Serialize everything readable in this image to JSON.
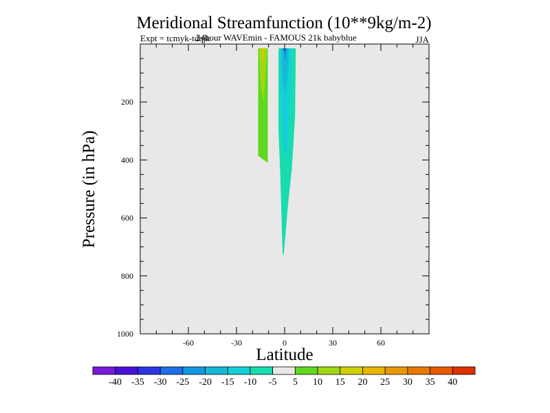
{
  "colors": {
    "plot_background": "#e8e8e8",
    "frame": "#000000",
    "colorbar": [
      "#7a18dc",
      "#4a10d8",
      "#2c36e0",
      "#1d6ee6",
      "#1098e0",
      "#16b8d8",
      "#12d0d8",
      "#18dcb0",
      "#e8e8e8",
      "#60d820",
      "#a0d810",
      "#d0d000",
      "#e8b800",
      "#e89800",
      "#e87800",
      "#e85a00",
      "#e03000"
    ]
  },
  "chart_data": {
    "type": "contour",
    "title": "Meridional Streamfunction (10**9kg/m-2)",
    "subtitle_left": "Expt = tcmyk-tdqjk",
    "subtitle_overlap": "24hour WAVEmin - FAMOUS 21k babyblue",
    "season": "JJA",
    "xlabel": "Latitude",
    "ylabel": "Pressure (in hPa)",
    "xlim": [
      -90,
      90
    ],
    "ylim": [
      1000,
      0
    ],
    "xticks": [
      -60,
      -30,
      0,
      30,
      60
    ],
    "yticks": [
      200,
      400,
      600,
      800,
      1000
    ],
    "x_minor_step": 10,
    "y_minor_step": 50,
    "colorbar_levels": [
      -40,
      -35,
      -30,
      -25,
      -20,
      -15,
      -10,
      -5,
      5,
      10,
      15,
      20,
      25,
      30,
      35,
      40
    ],
    "regions": [
      {
        "name": "positive-5-10",
        "level_index": 9,
        "points": [
          [
            -16.5,
            15
          ],
          [
            -10.5,
            15
          ],
          [
            -10.5,
            410
          ],
          [
            -13,
            400
          ],
          [
            -16.5,
            385
          ]
        ]
      },
      {
        "name": "positive-10-15",
        "level_index": 10,
        "points": [
          [
            -16,
            15
          ],
          [
            -11,
            15
          ],
          [
            -13,
            200
          ],
          [
            -15,
            140
          ]
        ]
      },
      {
        "name": "positive-15-20",
        "level_index": 11,
        "points": [
          [
            -14.8,
            15
          ],
          [
            -12.6,
            15
          ],
          [
            -13.6,
            60
          ]
        ]
      },
      {
        "name": "negative-10-5",
        "level_index": 7,
        "points": [
          [
            -3.8,
            15
          ],
          [
            7,
            15
          ],
          [
            6.5,
            250
          ],
          [
            4.5,
            430
          ],
          [
            2,
            560
          ],
          [
            -0.6,
            730
          ],
          [
            -1.3,
            720
          ],
          [
            -2.7,
            450
          ],
          [
            -3.8,
            300
          ]
        ]
      },
      {
        "name": "negative-15-10",
        "level_index": 6,
        "points": [
          [
            -2.5,
            15
          ],
          [
            4,
            15
          ],
          [
            3.5,
            150
          ],
          [
            2,
            320
          ],
          [
            0.5,
            400
          ],
          [
            -1.5,
            330
          ],
          [
            -2.5,
            150
          ]
        ]
      },
      {
        "name": "negative-20-15",
        "level_index": 5,
        "points": [
          [
            -2,
            15
          ],
          [
            2.5,
            15
          ],
          [
            2,
            100
          ],
          [
            0.5,
            180
          ],
          [
            -1.2,
            120
          ]
        ]
      },
      {
        "name": "negative-25-20",
        "level_index": 4,
        "points": [
          [
            -1,
            15
          ],
          [
            1.5,
            15
          ],
          [
            0.5,
            60
          ]
        ]
      }
    ]
  }
}
